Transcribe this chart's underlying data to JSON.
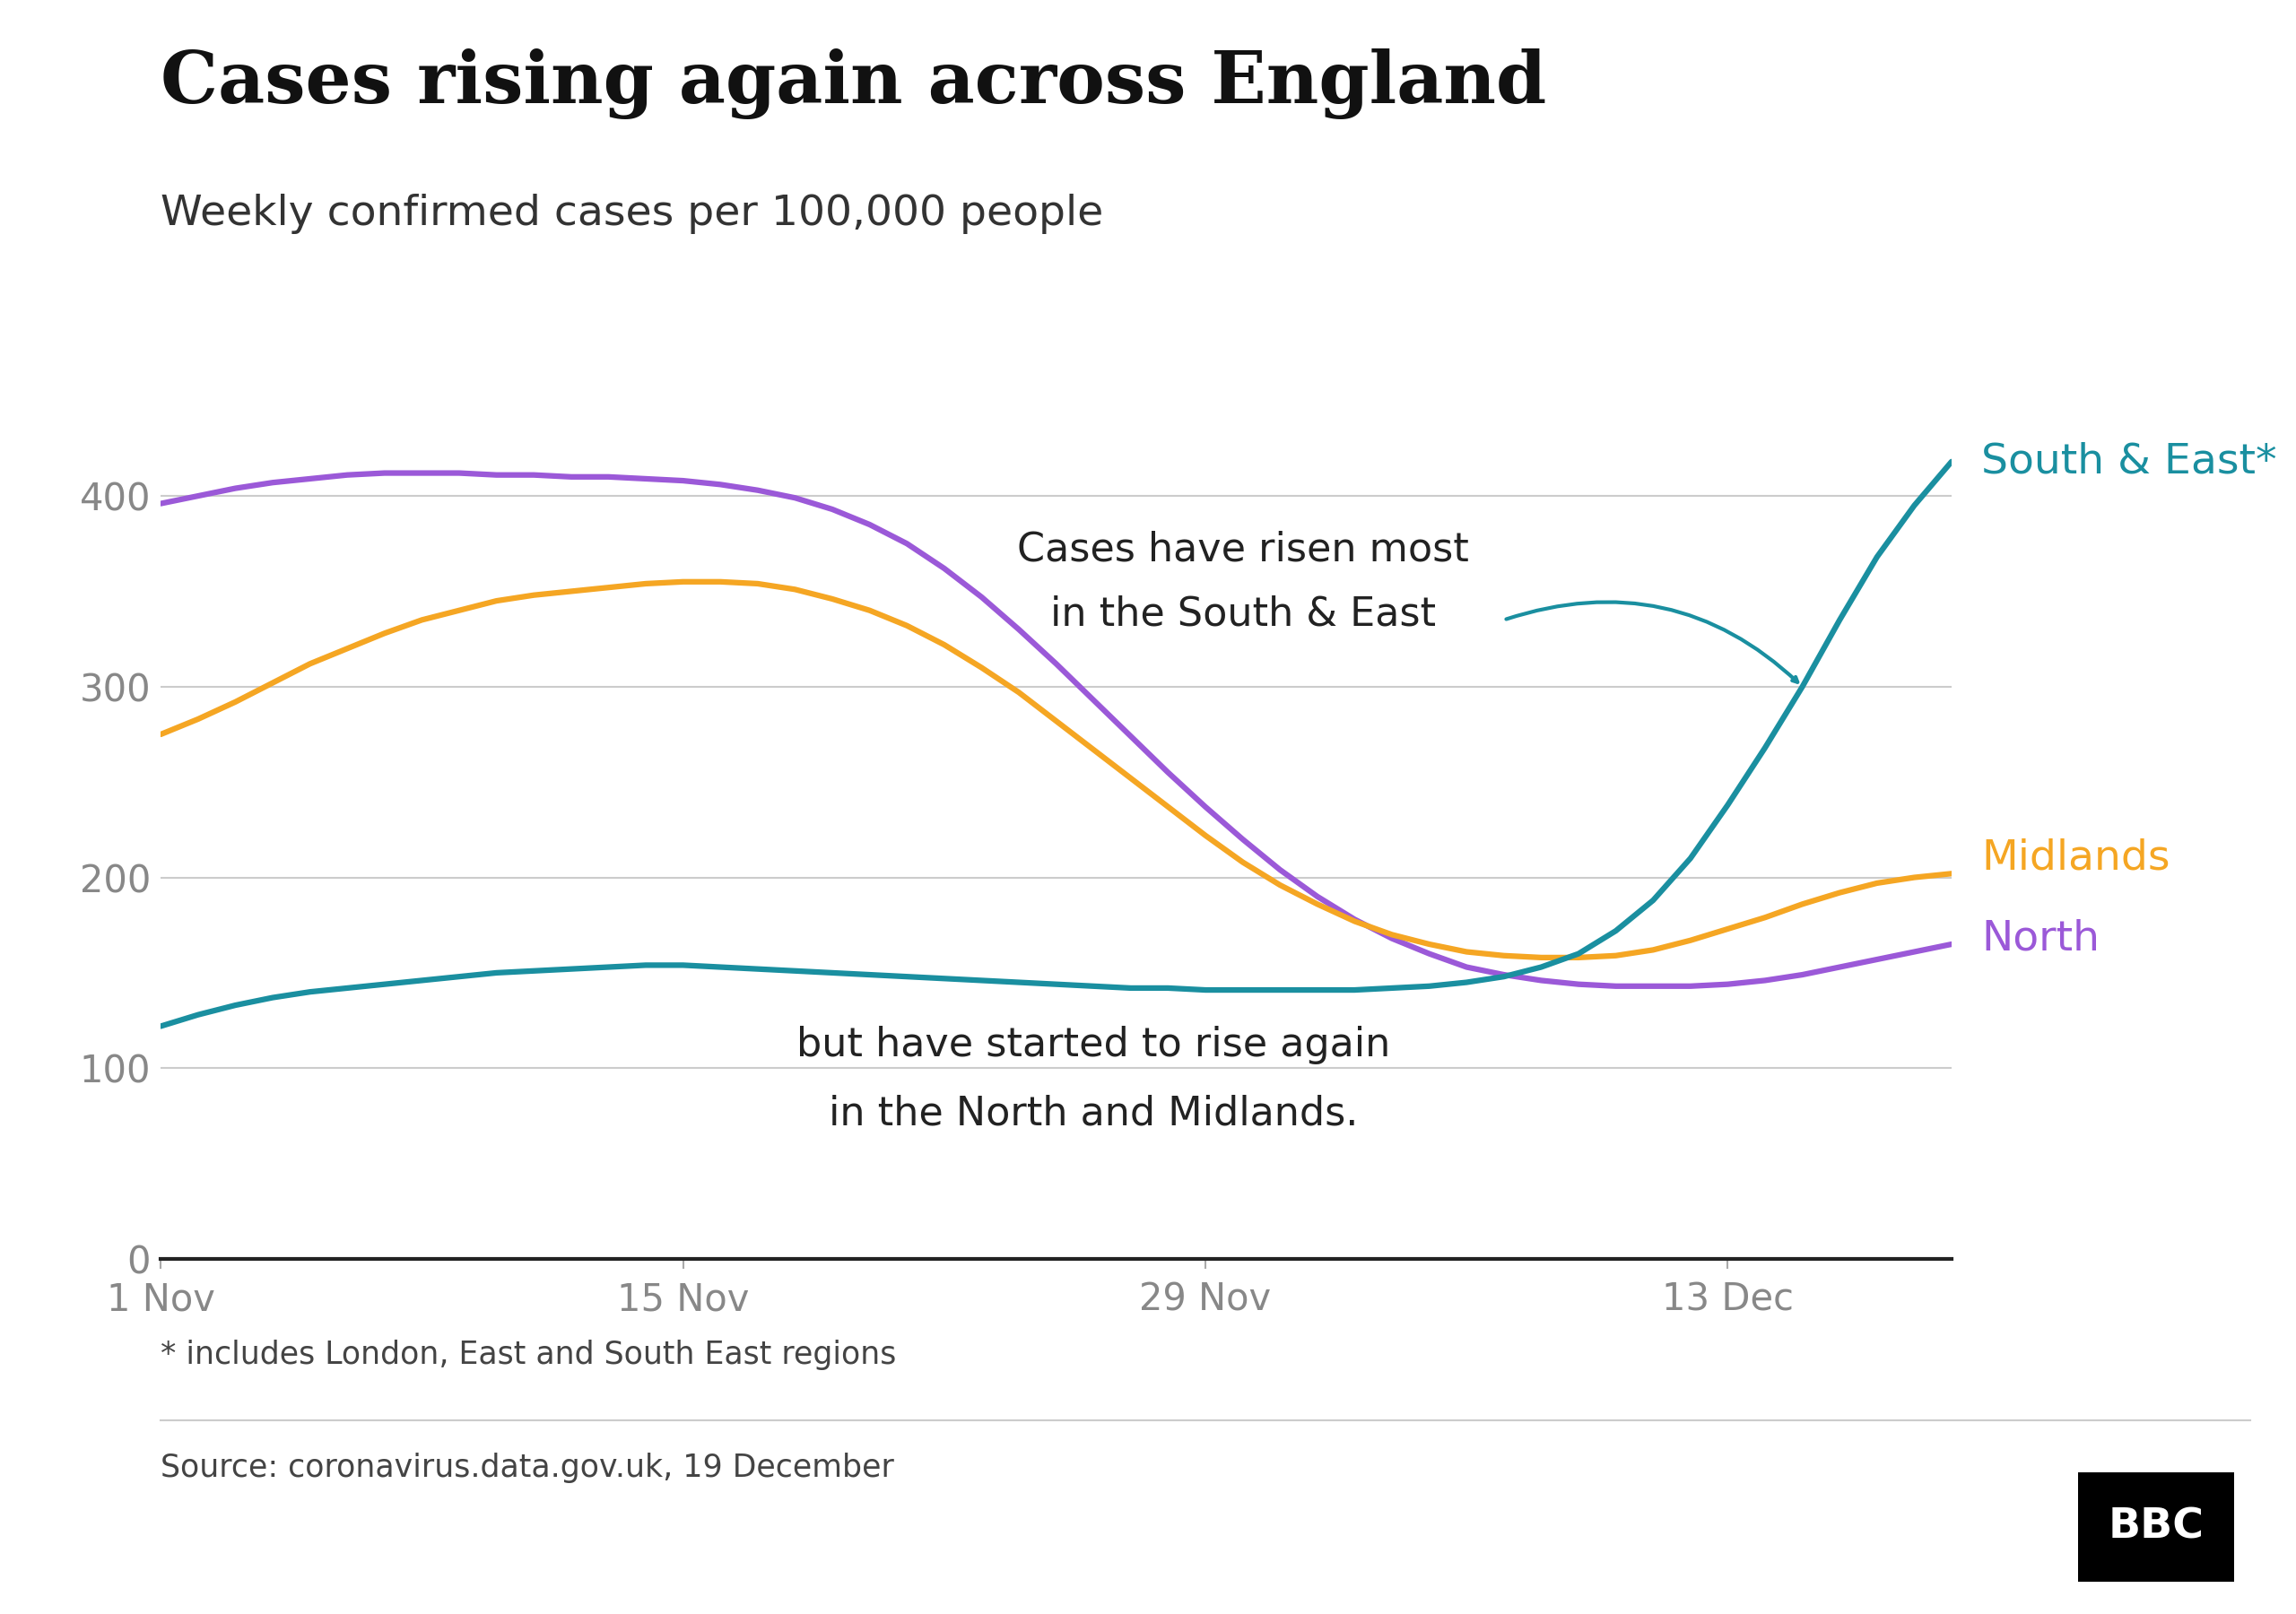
{
  "title": "Cases rising again across England",
  "subtitle": "Weekly confirmed cases per 100,000 people",
  "footnote": "* includes London, East and South East regions",
  "source": "Source: coronavirus.data.gov.uk, 19 December",
  "annotation1_line1": "Cases have risen most",
  "annotation1_line2": "in the South & East",
  "annotation2_line1": "but have started to rise again",
  "annotation2_line2": "in the North and Midlands.",
  "label_south_east": "South & East*",
  "label_midlands": "Midlands",
  "label_north": "North",
  "color_south_east": "#1a8fa0",
  "color_midlands": "#f5a623",
  "color_north": "#9b59d8",
  "color_annotation": "#222222",
  "yticks": [
    0,
    100,
    200,
    300,
    400
  ],
  "xtick_labels": [
    "1 Nov",
    "15 Nov",
    "29 Nov",
    "13 Dec"
  ],
  "xlim": [
    0,
    48
  ],
  "ylim": [
    0,
    440
  ],
  "south_east_x": [
    0,
    1,
    2,
    3,
    4,
    5,
    6,
    7,
    8,
    9,
    10,
    11,
    12,
    13,
    14,
    15,
    16,
    17,
    18,
    19,
    20,
    21,
    22,
    23,
    24,
    25,
    26,
    27,
    28,
    29,
    30,
    31,
    32,
    33,
    34,
    35,
    36,
    37,
    38,
    39,
    40,
    41,
    42,
    43,
    44,
    45,
    46,
    47,
    48
  ],
  "south_east_y": [
    122,
    128,
    133,
    137,
    140,
    142,
    144,
    146,
    148,
    150,
    151,
    152,
    153,
    154,
    154,
    153,
    152,
    151,
    150,
    149,
    148,
    147,
    146,
    145,
    144,
    143,
    142,
    142,
    141,
    141,
    141,
    141,
    141,
    142,
    143,
    145,
    148,
    153,
    160,
    172,
    188,
    210,
    238,
    268,
    300,
    335,
    368,
    395,
    418
  ],
  "midlands_x": [
    0,
    1,
    2,
    3,
    4,
    5,
    6,
    7,
    8,
    9,
    10,
    11,
    12,
    13,
    14,
    15,
    16,
    17,
    18,
    19,
    20,
    21,
    22,
    23,
    24,
    25,
    26,
    27,
    28,
    29,
    30,
    31,
    32,
    33,
    34,
    35,
    36,
    37,
    38,
    39,
    40,
    41,
    42,
    43,
    44,
    45,
    46,
    47,
    48
  ],
  "midlands_y": [
    275,
    283,
    292,
    302,
    312,
    320,
    328,
    335,
    340,
    345,
    348,
    350,
    352,
    354,
    355,
    355,
    354,
    351,
    346,
    340,
    332,
    322,
    310,
    297,
    282,
    267,
    252,
    237,
    222,
    208,
    196,
    186,
    177,
    170,
    165,
    161,
    159,
    158,
    158,
    159,
    162,
    167,
    173,
    179,
    186,
    192,
    197,
    200,
    202
  ],
  "north_x": [
    0,
    1,
    2,
    3,
    4,
    5,
    6,
    7,
    8,
    9,
    10,
    11,
    12,
    13,
    14,
    15,
    16,
    17,
    18,
    19,
    20,
    21,
    22,
    23,
    24,
    25,
    26,
    27,
    28,
    29,
    30,
    31,
    32,
    33,
    34,
    35,
    36,
    37,
    38,
    39,
    40,
    41,
    42,
    43,
    44,
    45,
    46,
    47,
    48
  ],
  "north_y": [
    396,
    400,
    404,
    407,
    409,
    411,
    412,
    412,
    412,
    411,
    411,
    410,
    410,
    409,
    408,
    406,
    403,
    399,
    393,
    385,
    375,
    362,
    347,
    330,
    312,
    293,
    274,
    255,
    237,
    220,
    204,
    190,
    178,
    168,
    160,
    153,
    149,
    146,
    144,
    143,
    143,
    143,
    144,
    146,
    149,
    153,
    157,
    161,
    165
  ],
  "xtick_positions": [
    0,
    14,
    28,
    42
  ]
}
